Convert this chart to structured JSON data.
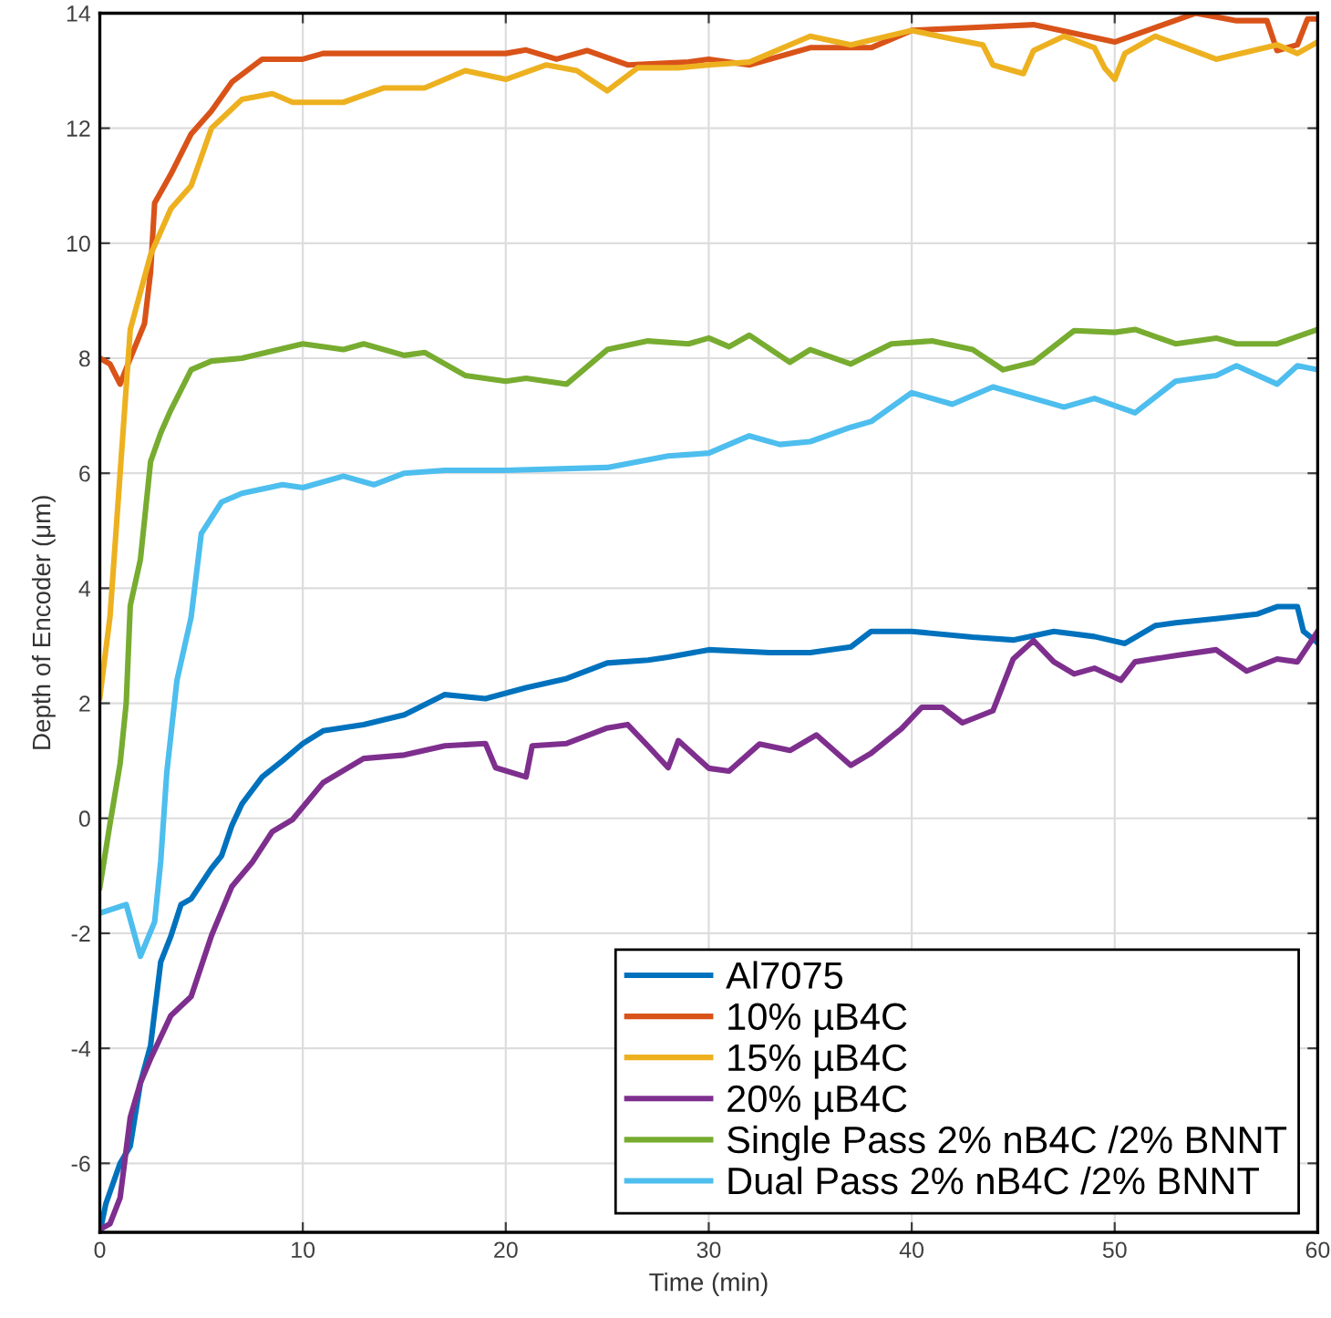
{
  "chart_data": {
    "type": "line",
    "xlabel": "Time (min)",
    "ylabel": "Depth of Encoder (μm)",
    "xlim": [
      0,
      60
    ],
    "ylim": [
      -7.2,
      14
    ],
    "xticks": [
      0,
      10,
      20,
      30,
      40,
      50,
      60
    ],
    "yticks": [
      -6,
      -4,
      -2,
      0,
      2,
      4,
      6,
      8,
      10,
      12,
      14
    ],
    "grid": true,
    "legend": "bottom right",
    "line_style": "solid",
    "marker": "none",
    "series": [
      {
        "name": "Al7075",
        "color": "#0072bd",
        "x": [
          0,
          0.3,
          1,
          1.5,
          2,
          2.5,
          3,
          3.5,
          4,
          4.5,
          5.5,
          6,
          6.5,
          7,
          8,
          9,
          10,
          11,
          13,
          15,
          17,
          19,
          21,
          23,
          25,
          27,
          28,
          30,
          33,
          35,
          37,
          38,
          40,
          43,
          45,
          47,
          49,
          50.5,
          52,
          53,
          55,
          57,
          58,
          59,
          59.3,
          60
        ],
        "values": [
          -7.2,
          -6.7,
          -6.0,
          -5.7,
          -4.6,
          -3.95,
          -2.5,
          -2.05,
          -1.5,
          -1.4,
          -0.87,
          -0.65,
          -0.13,
          0.25,
          0.72,
          1.0,
          1.3,
          1.52,
          1.63,
          1.8,
          2.15,
          2.08,
          2.27,
          2.43,
          2.7,
          2.75,
          2.8,
          2.93,
          2.88,
          2.88,
          2.98,
          3.25,
          3.25,
          3.15,
          3.1,
          3.25,
          3.16,
          3.04,
          3.35,
          3.4,
          3.47,
          3.55,
          3.68,
          3.68,
          3.25,
          3.05
        ]
      },
      {
        "name": "10% µB4C",
        "color": "#d95319",
        "x": [
          0,
          0.5,
          1,
          1.5,
          2.2,
          2.5,
          2.7,
          3.5,
          4.5,
          5.5,
          6.5,
          8,
          10,
          11,
          15,
          20,
          21,
          22.5,
          24,
          26,
          29,
          30,
          32,
          35,
          38,
          40,
          43,
          46,
          50,
          54,
          56,
          57.5,
          58,
          59,
          59.5,
          60
        ],
        "values": [
          8.0,
          7.9,
          7.55,
          8.0,
          8.6,
          9.5,
          10.7,
          11.2,
          11.9,
          12.3,
          12.8,
          13.2,
          13.2,
          13.3,
          13.3,
          13.3,
          13.36,
          13.2,
          13.35,
          13.1,
          13.15,
          13.2,
          13.1,
          13.4,
          13.4,
          13.7,
          13.75,
          13.8,
          13.5,
          14.0,
          13.87,
          13.87,
          13.35,
          13.45,
          13.9,
          13.9
        ]
      },
      {
        "name": "15% µB4C",
        "color": "#edb120",
        "x": [
          0,
          0.5,
          1,
          1.5,
          2.5,
          3.5,
          4.5,
          5.5,
          7,
          8.5,
          9.5,
          12,
          14,
          16,
          18,
          20,
          22,
          23.5,
          25,
          26.5,
          28.5,
          30,
          32,
          35,
          37,
          40,
          42,
          43.5,
          44,
          45.5,
          46,
          47.5,
          49,
          49.5,
          50,
          50.5,
          52,
          55,
          58,
          59,
          60
        ],
        "values": [
          2.1,
          3.5,
          6.0,
          8.5,
          9.8,
          10.6,
          11.0,
          12.0,
          12.5,
          12.6,
          12.45,
          12.45,
          12.7,
          12.7,
          13.0,
          12.85,
          13.1,
          13.0,
          12.65,
          13.05,
          13.05,
          13.1,
          13.15,
          13.6,
          13.45,
          13.7,
          13.55,
          13.45,
          13.1,
          12.95,
          13.35,
          13.6,
          13.4,
          13.05,
          12.85,
          13.3,
          13.6,
          13.2,
          13.45,
          13.3,
          13.5
        ]
      },
      {
        "name": "20% µB4C",
        "color": "#7e2f8e",
        "x": [
          0,
          0.5,
          1,
          1.5,
          2,
          2.5,
          3.5,
          4.5,
          5.5,
          6.5,
          7.5,
          8.5,
          9.5,
          11,
          13,
          15,
          17,
          19,
          19.5,
          21,
          21.3,
          23,
          25,
          26,
          27,
          28,
          28.5,
          30,
          31,
          32.5,
          34,
          35.3,
          37,
          38,
          39.5,
          40.5,
          41.5,
          42.5,
          44,
          45,
          46,
          47,
          48,
          49,
          50.3,
          51,
          53,
          55,
          56.5,
          58,
          59,
          60
        ],
        "values": [
          -7.15,
          -7.05,
          -6.6,
          -5.2,
          -4.6,
          -4.18,
          -3.43,
          -3.1,
          -2.04,
          -1.19,
          -0.77,
          -0.23,
          -0.02,
          0.62,
          1.04,
          1.1,
          1.26,
          1.3,
          0.88,
          0.72,
          1.26,
          1.3,
          1.57,
          1.63,
          1.26,
          0.88,
          1.35,
          0.87,
          0.82,
          1.29,
          1.18,
          1.45,
          0.92,
          1.13,
          1.56,
          1.93,
          1.93,
          1.66,
          1.87,
          2.77,
          3.09,
          2.72,
          2.51,
          2.61,
          2.4,
          2.72,
          2.83,
          2.93,
          2.56,
          2.77,
          2.72,
          3.25
        ]
      },
      {
        "name": "Single Pass 2% nB4C /2% BNNT",
        "color": "#77ac30",
        "x": [
          0,
          0.5,
          1,
          1.3,
          1.5,
          2,
          2.5,
          3,
          3.5,
          4.5,
          5.5,
          7,
          10,
          12,
          13,
          15,
          16,
          18,
          20,
          21,
          23,
          25,
          27,
          29,
          30,
          31,
          32,
          34,
          35,
          37,
          39,
          41,
          43,
          44.5,
          46,
          48,
          50,
          51,
          53,
          55,
          56,
          58,
          60
        ],
        "values": [
          -1.2,
          -0.1,
          0.95,
          2.0,
          3.7,
          4.5,
          6.2,
          6.7,
          7.1,
          7.8,
          7.95,
          8.0,
          8.25,
          8.15,
          8.25,
          8.05,
          8.1,
          7.7,
          7.6,
          7.65,
          7.55,
          8.15,
          8.3,
          8.25,
          8.35,
          8.2,
          8.4,
          7.93,
          8.15,
          7.9,
          8.25,
          8.3,
          8.15,
          7.8,
          7.93,
          8.48,
          8.45,
          8.5,
          8.25,
          8.35,
          8.25,
          8.25,
          8.5
        ]
      },
      {
        "name": "Dual Pass 2% nB4C /2% BNNT",
        "color": "#4dbeee",
        "x": [
          0,
          1.3,
          2,
          2.7,
          3,
          3.3,
          3.8,
          4.5,
          5,
          6,
          7,
          9,
          10,
          12,
          13.5,
          15,
          17,
          20,
          25,
          28,
          30,
          32,
          33.5,
          35,
          37,
          38,
          40,
          42,
          44,
          46,
          47.5,
          49,
          51,
          53,
          55,
          56,
          58,
          59,
          60
        ],
        "values": [
          -1.65,
          -1.5,
          -2.4,
          -1.8,
          -0.75,
          0.8,
          2.4,
          3.5,
          4.95,
          5.5,
          5.65,
          5.8,
          5.75,
          5.95,
          5.8,
          6.0,
          6.05,
          6.05,
          6.1,
          6.3,
          6.35,
          6.65,
          6.5,
          6.55,
          6.8,
          6.9,
          7.4,
          7.2,
          7.5,
          7.3,
          7.15,
          7.3,
          7.05,
          7.6,
          7.7,
          7.87,
          7.55,
          7.87,
          7.8
        ]
      }
    ]
  }
}
